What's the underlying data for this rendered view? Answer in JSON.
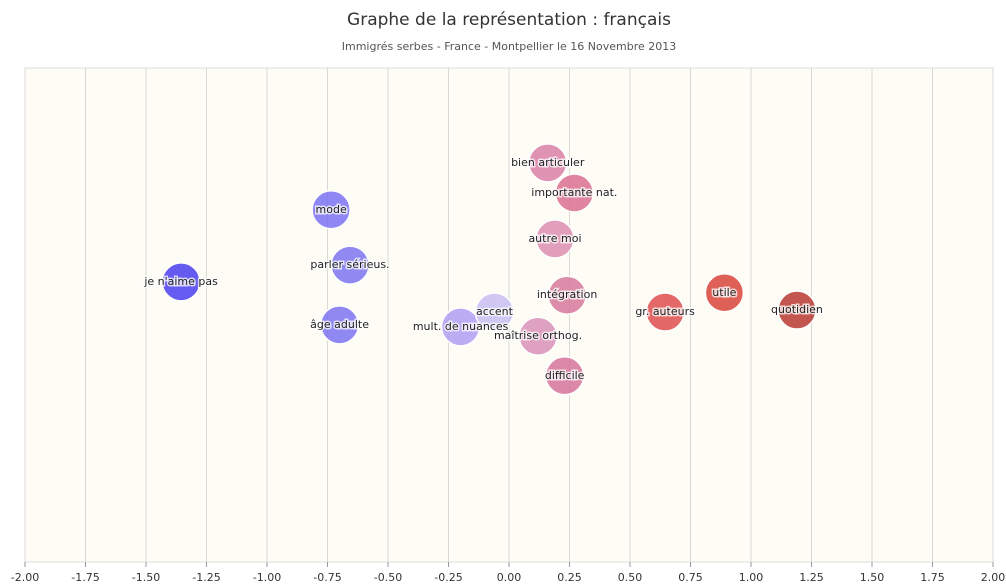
{
  "chart_data": {
    "type": "scatter",
    "title": "Graphe de la représentation : français",
    "subtitle": "Immigrés serbes - France - Montpellier le 16 Novembre 2013",
    "xlim": [
      -2,
      2
    ],
    "ylim": [
      0,
      100
    ],
    "xticks": [
      {
        "value": -2,
        "label": "-2.00"
      },
      {
        "value": -1.75,
        "label": "-1.75"
      },
      {
        "value": -1.5,
        "label": "-1.50"
      },
      {
        "value": -1.25,
        "label": "-1.25"
      },
      {
        "value": -1,
        "label": "-1.00"
      },
      {
        "value": -0.75,
        "label": "-0.75"
      },
      {
        "value": -0.5,
        "label": "-0.50"
      },
      {
        "value": -0.25,
        "label": "-0.25"
      },
      {
        "value": 0,
        "label": "0.00"
      },
      {
        "value": 0.25,
        "label": "0.25"
      },
      {
        "value": 0.5,
        "label": "0.50"
      },
      {
        "value": 0.75,
        "label": "0.75"
      },
      {
        "value": 1,
        "label": "1.00"
      },
      {
        "value": 1.25,
        "label": "1.25"
      },
      {
        "value": 1.5,
        "label": "1.50"
      },
      {
        "value": 1.75,
        "label": "1.75"
      },
      {
        "value": 2,
        "label": "2.00"
      }
    ],
    "grid": true,
    "points": [
      {
        "label": "je n'aime pas",
        "x": -1.355,
        "y": 56.7,
        "color": "#4b3ef0"
      },
      {
        "label": "mode",
        "x": -0.735,
        "y": 71.3,
        "color": "#7b72f2"
      },
      {
        "label": "parler sérieus.",
        "x": -0.657,
        "y": 60.1,
        "color": "#7d74f0"
      },
      {
        "label": "âge adulte",
        "x": -0.7,
        "y": 48.0,
        "color": "#7d74f0"
      },
      {
        "label": "mult. de nuances",
        "x": -0.2,
        "y": 47.6,
        "color": "#b09ef2"
      },
      {
        "label": "accent",
        "x": -0.06,
        "y": 50.6,
        "color": "#c8bdf2"
      },
      {
        "label": "bien articuler",
        "x": 0.16,
        "y": 80.8,
        "color": "#d97fa6"
      },
      {
        "label": "importante nat.",
        "x": 0.27,
        "y": 74.7,
        "color": "#d9708f"
      },
      {
        "label": "autre moi",
        "x": 0.19,
        "y": 65.4,
        "color": "#dc8eb0"
      },
      {
        "label": "intégration",
        "x": 0.24,
        "y": 54.0,
        "color": "#d7799b"
      },
      {
        "label": "maîtrise orthog.",
        "x": 0.12,
        "y": 45.7,
        "color": "#d991b8"
      },
      {
        "label": "difficile",
        "x": 0.23,
        "y": 37.7,
        "color": "#d6739a"
      },
      {
        "label": "gr. auteurs",
        "x": 0.645,
        "y": 50.6,
        "color": "#de4f4f"
      },
      {
        "label": "utile",
        "x": 0.89,
        "y": 54.5,
        "color": "#d9443a"
      },
      {
        "label": "quotidien",
        "x": 1.19,
        "y": 51.0,
        "color": "#b83a32"
      }
    ]
  }
}
